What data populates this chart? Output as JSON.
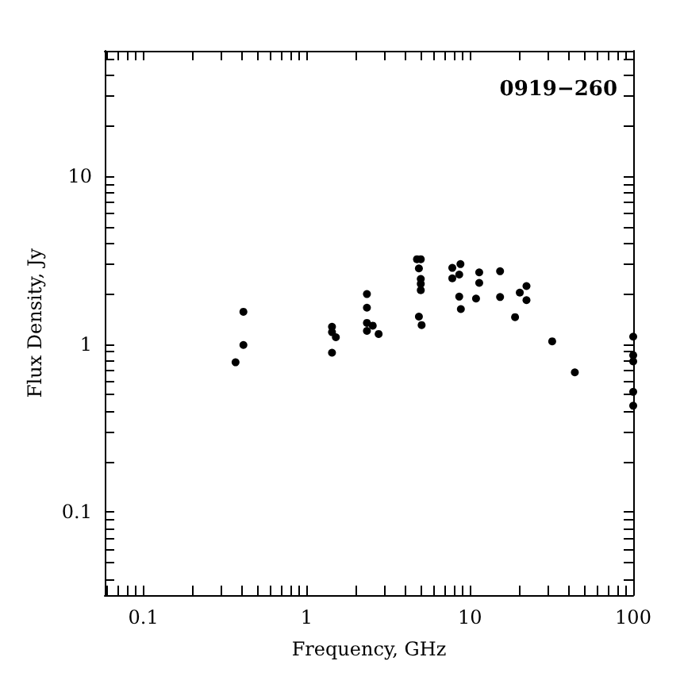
{
  "chart_data": {
    "type": "scatter",
    "xlabel": "Frequency, GHz",
    "ylabel": "Flux Density, Jy",
    "annotations": [
      "0919−260"
    ],
    "log": "xy",
    "marker": "circle",
    "xlim": [
      0.058,
      100
    ],
    "ylim": [
      0.032,
      56
    ],
    "xticks": [
      {
        "value": 0.06,
        "label": null
      },
      {
        "value": 0.07,
        "label": null
      },
      {
        "value": 0.08,
        "label": null
      },
      {
        "value": 0.09,
        "label": null
      },
      0.1,
      {
        "value": 0.2,
        "label": null
      },
      {
        "value": 0.3,
        "label": null
      },
      {
        "value": 0.4,
        "label": null
      },
      {
        "value": 0.5,
        "label": null
      },
      {
        "value": 0.6,
        "label": null
      },
      {
        "value": 0.7,
        "label": null
      },
      {
        "value": 0.8,
        "label": null
      },
      {
        "value": 0.9,
        "label": null
      },
      1,
      {
        "value": 2,
        "label": null
      },
      {
        "value": 3,
        "label": null
      },
      {
        "value": 4,
        "label": null
      },
      {
        "value": 5,
        "label": null
      },
      {
        "value": 6,
        "label": null
      },
      {
        "value": 7,
        "label": null
      },
      {
        "value": 8,
        "label": null
      },
      {
        "value": 9,
        "label": null
      },
      10,
      {
        "value": 20,
        "label": null
      },
      {
        "value": 30,
        "label": null
      },
      {
        "value": 40,
        "label": null
      },
      {
        "value": 50,
        "label": null
      },
      {
        "value": 60,
        "label": null
      },
      {
        "value": 70,
        "label": null
      },
      {
        "value": 80,
        "label": null
      },
      {
        "value": 90,
        "label": null
      },
      100
    ],
    "yticks": [
      {
        "value": 0.04,
        "label": null
      },
      {
        "value": 0.05,
        "label": null
      },
      {
        "value": 0.06,
        "label": null
      },
      {
        "value": 0.07,
        "label": null
      },
      {
        "value": 0.08,
        "label": null
      },
      {
        "value": 0.09,
        "label": null
      },
      0.1,
      {
        "value": 0.2,
        "label": null
      },
      {
        "value": 0.3,
        "label": null
      },
      {
        "value": 0.4,
        "label": null
      },
      {
        "value": 0.5,
        "label": null
      },
      {
        "value": 0.6,
        "label": null
      },
      {
        "value": 0.7,
        "label": null
      },
      {
        "value": 0.8,
        "label": null
      },
      {
        "value": 0.9,
        "label": null
      },
      1,
      {
        "value": 2,
        "label": null
      },
      {
        "value": 3,
        "label": null
      },
      {
        "value": 4,
        "label": null
      },
      {
        "value": 5,
        "label": null
      },
      {
        "value": 6,
        "label": null
      },
      {
        "value": 7,
        "label": null
      },
      {
        "value": 8,
        "label": null
      },
      {
        "value": 9,
        "label": null
      },
      10,
      {
        "value": 20,
        "label": null
      },
      {
        "value": 30,
        "label": null
      },
      {
        "value": 40,
        "label": null
      },
      {
        "value": 50,
        "label": null
      }
    ],
    "series": [
      {
        "color": "#000000",
        "x": [
          0.367,
          0.41,
          0.41,
          1.43,
          1.43,
          1.51,
          1.43,
          2.34,
          2.34,
          2.34,
          2.34,
          2.54,
          2.76,
          4.74,
          5.0,
          4.87,
          5.0,
          5.0,
          5.0,
          4.87,
          5.06,
          7.8,
          8.75,
          7.8,
          8.6,
          8.6,
          8.8,
          11.4,
          11.4,
          10.9,
          15.3,
          15.3,
          20.2,
          22.2,
          22.2,
          18.9,
          31.9,
          43.9,
          100,
          100,
          100,
          100,
          100
        ],
        "values": [
          0.78,
          1.56,
          0.99,
          1.27,
          1.18,
          1.1,
          0.89,
          1.99,
          1.65,
          1.34,
          1.2,
          1.29,
          1.15,
          3.21,
          3.21,
          2.83,
          2.45,
          2.29,
          2.1,
          1.46,
          1.3,
          2.85,
          3.0,
          2.47,
          2.6,
          1.92,
          1.62,
          2.68,
          2.32,
          1.87,
          2.72,
          1.91,
          2.03,
          2.22,
          1.83,
          1.45,
          1.04,
          0.68,
          1.11,
          0.86,
          0.79,
          0.52,
          0.43
        ]
      }
    ]
  }
}
